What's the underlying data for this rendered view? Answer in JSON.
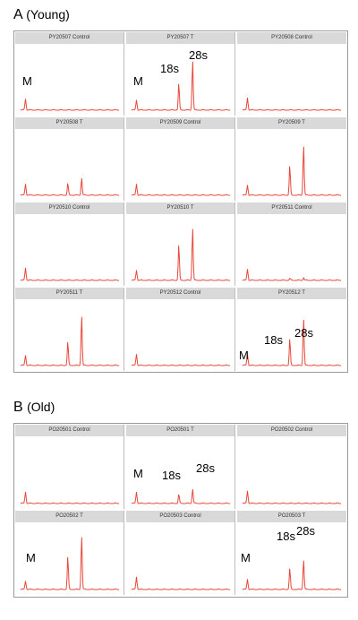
{
  "colors": {
    "trace": "#e8483a",
    "header_bg": "#d9d9d9",
    "frame_border": "#9a9a9a"
  },
  "sections": [
    {
      "letter": "A",
      "label": "(Young)",
      "panels": [
        {
          "label": "PY20507 Control",
          "annotations": [
            "M"
          ],
          "chart_data": {
            "type": "line",
            "peaks": [
              {
                "x": 0.05,
                "h": 0.2
              }
            ]
          }
        },
        {
          "label": "PY20507 T",
          "annotations": [
            "M",
            "18s",
            "28s"
          ],
          "chart_data": {
            "type": "line",
            "peaks": [
              {
                "x": 0.05,
                "h": 0.18
              },
              {
                "x": 0.48,
                "h": 0.45
              },
              {
                "x": 0.62,
                "h": 0.85
              }
            ]
          }
        },
        {
          "label": "PY20508 Control",
          "annotations": [],
          "chart_data": {
            "type": "line",
            "peaks": [
              {
                "x": 0.05,
                "h": 0.22
              }
            ]
          }
        },
        {
          "label": "PY20508 T",
          "annotations": [],
          "chart_data": {
            "type": "line",
            "peaks": [
              {
                "x": 0.05,
                "h": 0.2
              },
              {
                "x": 0.48,
                "h": 0.2
              },
              {
                "x": 0.62,
                "h": 0.3
              }
            ]
          }
        },
        {
          "label": "PY20509 Control",
          "annotations": [],
          "chart_data": {
            "type": "line",
            "peaks": [
              {
                "x": 0.05,
                "h": 0.2
              }
            ]
          }
        },
        {
          "label": "PY20509 T",
          "annotations": [],
          "chart_data": {
            "type": "line",
            "peaks": [
              {
                "x": 0.05,
                "h": 0.18
              },
              {
                "x": 0.48,
                "h": 0.5
              },
              {
                "x": 0.62,
                "h": 0.85
              }
            ]
          }
        },
        {
          "label": "PY20510 Control",
          "annotations": [],
          "chart_data": {
            "type": "line",
            "peaks": [
              {
                "x": 0.05,
                "h": 0.22
              }
            ]
          }
        },
        {
          "label": "PY20510 T",
          "annotations": [],
          "chart_data": {
            "type": "line",
            "peaks": [
              {
                "x": 0.05,
                "h": 0.18
              },
              {
                "x": 0.48,
                "h": 0.6
              },
              {
                "x": 0.62,
                "h": 0.9
              }
            ]
          }
        },
        {
          "label": "PY20511 Control",
          "annotations": [],
          "chart_data": {
            "type": "line",
            "peaks": [
              {
                "x": 0.05,
                "h": 0.2
              },
              {
                "x": 0.48,
                "h": 0.03
              },
              {
                "x": 0.62,
                "h": 0.05
              }
            ]
          }
        },
        {
          "label": "PY20511 T",
          "annotations": [],
          "chart_data": {
            "type": "line",
            "peaks": [
              {
                "x": 0.05,
                "h": 0.18
              },
              {
                "x": 0.48,
                "h": 0.4
              },
              {
                "x": 0.62,
                "h": 0.85
              }
            ]
          }
        },
        {
          "label": "PY20512 Control",
          "annotations": [],
          "chart_data": {
            "type": "line",
            "peaks": [
              {
                "x": 0.05,
                "h": 0.2
              }
            ]
          }
        },
        {
          "label": "PY20512 T",
          "annotations": [
            "M",
            "18s",
            "28s"
          ],
          "chart_data": {
            "type": "line",
            "peaks": [
              {
                "x": 0.05,
                "h": 0.2
              },
              {
                "x": 0.48,
                "h": 0.45
              },
              {
                "x": 0.62,
                "h": 0.8
              }
            ]
          }
        }
      ]
    },
    {
      "letter": "B",
      "label": "(Old)",
      "panels": [
        {
          "label": "PO20501 Control",
          "annotations": [],
          "chart_data": {
            "type": "line",
            "peaks": [
              {
                "x": 0.05,
                "h": 0.2
              }
            ]
          }
        },
        {
          "label": "PO20501 T",
          "annotations": [
            "M",
            "18s",
            "28s"
          ],
          "chart_data": {
            "type": "line",
            "peaks": [
              {
                "x": 0.05,
                "h": 0.2
              },
              {
                "x": 0.48,
                "h": 0.15
              },
              {
                "x": 0.62,
                "h": 0.25
              }
            ]
          }
        },
        {
          "label": "PO20502 Control",
          "annotations": [],
          "chart_data": {
            "type": "line",
            "peaks": [
              {
                "x": 0.05,
                "h": 0.22
              }
            ]
          }
        },
        {
          "label": "PO20502 T",
          "annotations": [
            "M"
          ],
          "chart_data": {
            "type": "line",
            "peaks": [
              {
                "x": 0.05,
                "h": 0.15
              },
              {
                "x": 0.48,
                "h": 0.55
              },
              {
                "x": 0.62,
                "h": 0.9
              }
            ]
          }
        },
        {
          "label": "PO20503 Control",
          "annotations": [],
          "chart_data": {
            "type": "line",
            "peaks": [
              {
                "x": 0.05,
                "h": 0.22
              }
            ]
          }
        },
        {
          "label": "PO20503 T",
          "annotations": [
            "M",
            "18s",
            "28s"
          ],
          "chart_data": {
            "type": "line",
            "peaks": [
              {
                "x": 0.05,
                "h": 0.18
              },
              {
                "x": 0.48,
                "h": 0.35
              },
              {
                "x": 0.62,
                "h": 0.5
              }
            ]
          }
        }
      ]
    }
  ]
}
